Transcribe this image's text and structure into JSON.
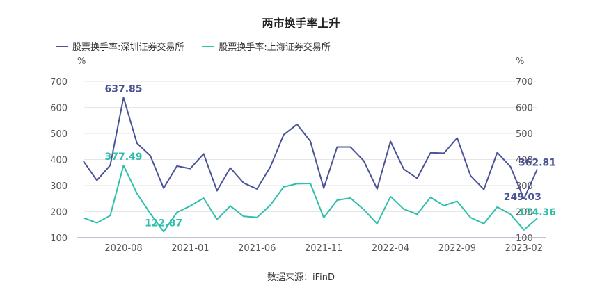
{
  "chart_data": {
    "type": "line",
    "title": "两市换手率上升",
    "y_unit_left": "%",
    "y_unit_right": "%",
    "ylim": [
      100,
      700
    ],
    "yticks": [
      100,
      200,
      300,
      400,
      500,
      600,
      700
    ],
    "x_tick_labels": [
      "2020-08",
      "2021-01",
      "2021-06",
      "2021-11",
      "2022-04",
      "2022-09",
      "2023-02"
    ],
    "x_tick_indices": [
      3,
      8,
      13,
      18,
      23,
      28,
      33
    ],
    "grid": true,
    "legend_position": "top-left",
    "source": "数据来源：iFinD",
    "series": [
      {
        "name": "股票换手率:深圳证券交易所",
        "color": "#4a5396",
        "values": [
          393,
          320,
          378,
          637.85,
          463,
          415,
          290,
          375,
          365,
          422,
          280,
          368,
          310,
          287,
          372,
          495,
          535,
          470,
          290,
          448,
          448,
          395,
          287,
          470,
          363,
          328,
          426,
          424,
          483,
          338,
          285,
          427,
          372,
          249.03,
          362.81
        ],
        "labels": [
          {
            "index": 3,
            "text": "637.85",
            "pos": "above"
          },
          {
            "index": 34,
            "text": "362.81",
            "pos": "right"
          },
          {
            "index": 33,
            "text": "249.03",
            "pos": "below"
          }
        ]
      },
      {
        "name": "股票换手率:上海证券交易所",
        "color": "#2fbfad",
        "values": [
          176,
          157,
          185,
          377.49,
          270,
          193,
          122.87,
          197,
          222,
          252,
          170,
          222,
          182,
          178,
          225,
          295,
          307,
          308,
          177,
          244,
          252,
          208,
          154,
          258,
          210,
          190,
          255,
          223,
          240,
          177,
          154,
          218,
          190,
          130,
          174.36
        ],
        "labels": [
          {
            "index": 3,
            "text": "377.49",
            "pos": "above"
          },
          {
            "index": 6,
            "text": "122.87",
            "pos": "above"
          },
          {
            "index": 34,
            "text": "174.36",
            "pos": "above"
          }
        ]
      }
    ]
  }
}
